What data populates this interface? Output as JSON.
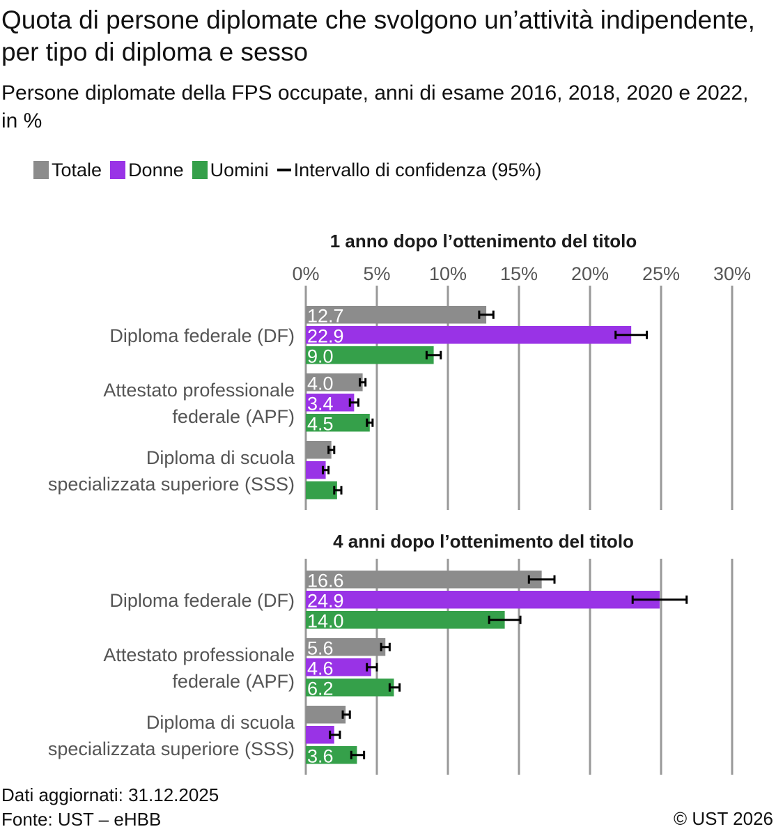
{
  "title": "Quota di persone diplomate che svolgono un’attività indipendente, per tipo di diploma e sesso",
  "subtitle": "Persone diplomate della FPS occupate, anni di esame 2016, 2018, 2020 e 2022, in %",
  "legend": {
    "totale": "Totale",
    "donne": "Donne",
    "uomini": "Uomini",
    "ci": "Intervallo di confidenza (95%)"
  },
  "colors": {
    "totale": "#8c8c8c",
    "donne": "#9933e6",
    "uomini": "#35a04a",
    "grid": "#999999",
    "ci": "#000000"
  },
  "chart_data": [
    {
      "type": "bar",
      "orientation": "horizontal",
      "title": "1 anno dopo l’ottenimento del titolo",
      "xlim": [
        0,
        30
      ],
      "xticks": [
        "0%",
        "5%",
        "10%",
        "15%",
        "20%",
        "25%",
        "30%"
      ],
      "grid": true,
      "categories": [
        [
          "Diploma federale (DF)"
        ],
        [
          "Attestato professionale",
          "federale (APF)"
        ],
        [
          "Diploma di scuola",
          "specializzata superiore (SSS)"
        ]
      ],
      "series": [
        {
          "name": "Totale",
          "key": "totale",
          "values": [
            12.7,
            4.0,
            1.8
          ],
          "ci_low": [
            12.2,
            3.8,
            1.6
          ],
          "ci_high": [
            13.2,
            4.2,
            2.0
          ],
          "labels": [
            "12.7",
            "4.0",
            ""
          ]
        },
        {
          "name": "Donne",
          "key": "donne",
          "values": [
            22.9,
            3.4,
            1.4
          ],
          "ci_low": [
            21.8,
            3.1,
            1.2
          ],
          "ci_high": [
            24.0,
            3.7,
            1.6
          ],
          "labels": [
            "22.9",
            "3.4",
            ""
          ]
        },
        {
          "name": "Uomini",
          "key": "uomini",
          "values": [
            9.0,
            4.5,
            2.2
          ],
          "ci_low": [
            8.5,
            4.3,
            2.0
          ],
          "ci_high": [
            9.5,
            4.7,
            2.5
          ],
          "labels": [
            "9.0",
            "4.5",
            ""
          ]
        }
      ]
    },
    {
      "type": "bar",
      "orientation": "horizontal",
      "title": "4 anni dopo l’ottenimento del titolo",
      "xlim": [
        0,
        30
      ],
      "xticks": [
        "0%",
        "5%",
        "10%",
        "15%",
        "20%",
        "25%",
        "30%"
      ],
      "grid": true,
      "categories": [
        [
          "Diploma federale (DF)"
        ],
        [
          "Attestato professionale",
          "federale (APF)"
        ],
        [
          "Diploma di scuola",
          "specializzata superiore (SSS)"
        ]
      ],
      "series": [
        {
          "name": "Totale",
          "key": "totale",
          "values": [
            16.6,
            5.6,
            2.8
          ],
          "ci_low": [
            15.7,
            5.3,
            2.6
          ],
          "ci_high": [
            17.5,
            5.9,
            3.1
          ],
          "labels": [
            "16.6",
            "5.6",
            ""
          ]
        },
        {
          "name": "Donne",
          "key": "donne",
          "values": [
            24.9,
            4.6,
            2.0
          ],
          "ci_low": [
            23.0,
            4.3,
            1.7
          ],
          "ci_high": [
            26.8,
            5.0,
            2.4
          ],
          "labels": [
            "24.9",
            "4.6",
            ""
          ]
        },
        {
          "name": "Uomini",
          "key": "uomini",
          "values": [
            14.0,
            6.2,
            3.6
          ],
          "ci_low": [
            12.9,
            5.9,
            3.2
          ],
          "ci_high": [
            15.1,
            6.6,
            4.1
          ],
          "labels": [
            "14.0",
            "6.2",
            "3.6"
          ]
        }
      ]
    }
  ],
  "footer": {
    "updated": "Dati aggiornati: 31.12.2025",
    "source": "Fonte: UST – eHBB",
    "copyright": "© UST 2026"
  }
}
